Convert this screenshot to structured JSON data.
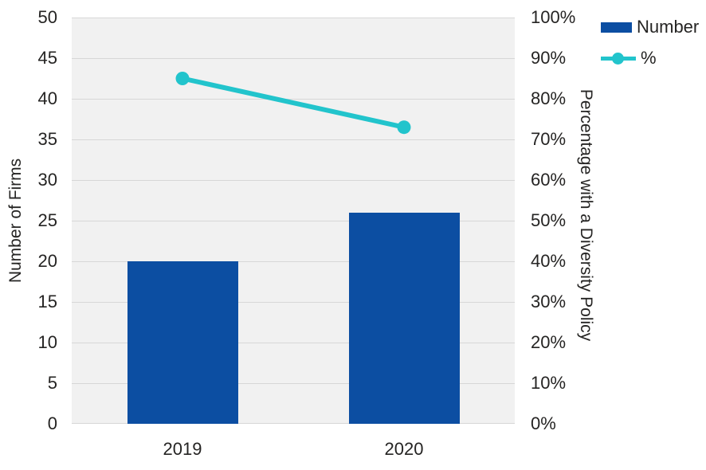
{
  "colors": {
    "background": "#FFFFFF",
    "plot_background": "#F1F1F1",
    "gridline": "#D7D7D7",
    "text": "#252423",
    "bar": "#0C4EA2",
    "line": "#22C4CC"
  },
  "legend": {
    "position": "top-right",
    "items": [
      {
        "label": "Number",
        "swatch": "bar-swatch"
      },
      {
        "label": "%",
        "swatch": "line-marker-swatch"
      }
    ]
  },
  "chart_data": {
    "type": "combo",
    "categories": [
      "2019",
      "2020"
    ],
    "series": [
      {
        "name": "Number",
        "type": "bar",
        "axis": "left",
        "color": "#0C4EA2",
        "values": [
          20,
          26
        ]
      },
      {
        "name": "%",
        "type": "line",
        "axis": "right",
        "color": "#22C4CC",
        "values": [
          85,
          73
        ]
      }
    ],
    "left_axis": {
      "label": "Number of Firms",
      "min": 0,
      "max": 50,
      "step": 5,
      "ticks": [
        "0",
        "5",
        "10",
        "15",
        "20",
        "25",
        "30",
        "35",
        "40",
        "45",
        "50"
      ]
    },
    "right_axis": {
      "label": "Percentage with a Diversity Policy",
      "min": 0,
      "max": 100,
      "step": 10,
      "ticks": [
        "0%",
        "10%",
        "20%",
        "30%",
        "40%",
        "50%",
        "60%",
        "70%",
        "80%",
        "90%",
        "100%"
      ]
    },
    "grid": true,
    "title": ""
  }
}
